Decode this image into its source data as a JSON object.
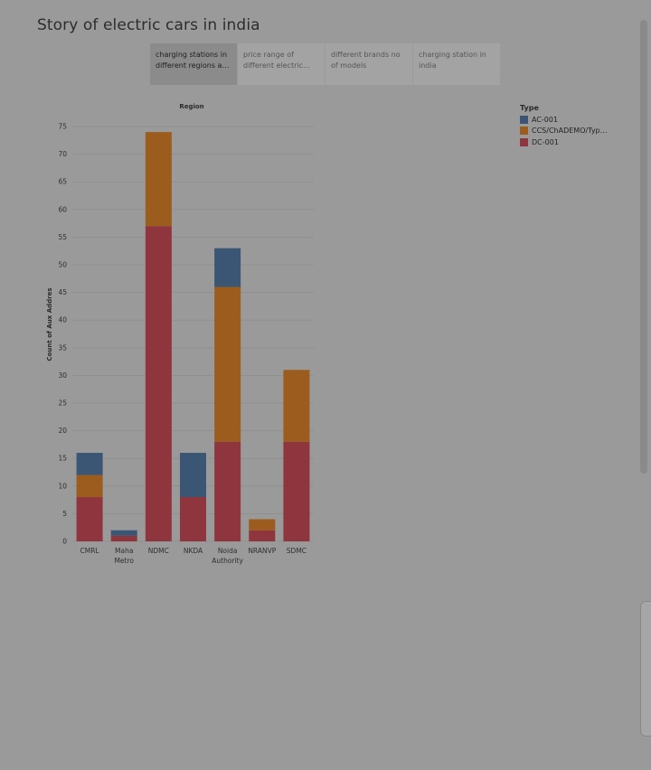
{
  "story": {
    "title": "Story of electric cars in india"
  },
  "tabs": [
    {
      "label": "charging stations in different regions as p...",
      "active": true
    },
    {
      "label": "price range of different electric cars...",
      "active": false
    },
    {
      "label": "different brands no of models",
      "active": false
    },
    {
      "label": "charging station in india",
      "active": false
    }
  ],
  "legend": {
    "title": "Type",
    "items": [
      {
        "label": "AC-001",
        "color": "#3b5574"
      },
      {
        "label": "CCS/ChADEMO/Type ..",
        "color": "#9c5c1e"
      },
      {
        "label": "DC-001",
        "color": "#8f353d"
      }
    ]
  },
  "chart_data": {
    "type": "bar",
    "stacked": true,
    "title": "Region",
    "xlabel": "",
    "ylabel": "Count of Aux Addres",
    "ylim": [
      0,
      75
    ],
    "yticks": [
      0,
      5,
      10,
      15,
      20,
      25,
      30,
      35,
      40,
      45,
      50,
      55,
      60,
      65,
      70,
      75
    ],
    "grid": true,
    "legend_position": "top-right",
    "categories": [
      "CMRL",
      "Maha Metro",
      "NDMC",
      "NKDA",
      "Noida Authority",
      "NRANVP",
      "SDMC"
    ],
    "series": [
      {
        "name": "DC-001",
        "color": "#8f353d",
        "values": [
          8,
          1,
          57,
          8,
          18,
          2,
          18
        ]
      },
      {
        "name": "CCS/ChADEMO/Type ..",
        "color": "#9c5c1e",
        "values": [
          4,
          0,
          17,
          0,
          28,
          2,
          13
        ]
      },
      {
        "name": "AC-001",
        "color": "#3b5574",
        "values": [
          4,
          1,
          0,
          8,
          7,
          0,
          0
        ]
      }
    ]
  }
}
